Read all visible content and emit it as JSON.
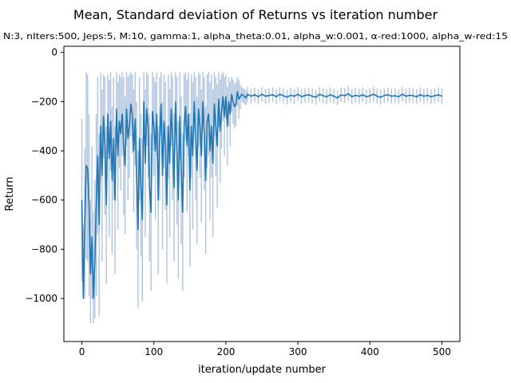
{
  "chart_data": {
    "type": "line",
    "title": "Mean, Standard deviation of Returns vs iteration number",
    "subtitle": "N:3, nIters:500, Jeps:5, M:10, gamma:1, alpha_theta:0.01, alpha_w:0.001, α-red:1000, alpha_w-red:15",
    "xlabel": "iteration/update number",
    "ylabel": "Return",
    "xlim": [
      -25,
      525
    ],
    "ylim": [
      -1175,
      25
    ],
    "xticks": [
      0,
      100,
      200,
      300,
      400,
      500
    ],
    "yticks": [
      0,
      -200,
      -400,
      -600,
      -800,
      -1000
    ],
    "grid": false,
    "legend": "none",
    "colors": {
      "mean": "#1f77b4",
      "std_bars": "#b0c4de"
    },
    "series": [
      {
        "role": "mean",
        "x": [
          0,
          2,
          4,
          6,
          8,
          10,
          12,
          14,
          16,
          18,
          20,
          22,
          24,
          26,
          28,
          30,
          32,
          34,
          36,
          38,
          40,
          42,
          44,
          46,
          48,
          50,
          52,
          54,
          56,
          58,
          60,
          62,
          64,
          66,
          68,
          70,
          72,
          74,
          76,
          78,
          80,
          82,
          84,
          86,
          88,
          90,
          92,
          94,
          96,
          98,
          100,
          102,
          104,
          106,
          108,
          110,
          112,
          114,
          116,
          118,
          120,
          122,
          124,
          126,
          128,
          130,
          132,
          134,
          136,
          138,
          140,
          142,
          144,
          146,
          148,
          150,
          152,
          154,
          156,
          158,
          160,
          162,
          164,
          166,
          168,
          170,
          172,
          174,
          176,
          178,
          180,
          182,
          184,
          186,
          188,
          190,
          192,
          194,
          196,
          198,
          200,
          202,
          204,
          206,
          208,
          210,
          212,
          214,
          216,
          218,
          220,
          222,
          224,
          226,
          228,
          230,
          235,
          240,
          245,
          250,
          255,
          260,
          265,
          270,
          275,
          280,
          285,
          290,
          295,
          300,
          305,
          310,
          315,
          320,
          325,
          330,
          335,
          340,
          345,
          350,
          355,
          360,
          365,
          370,
          375,
          380,
          385,
          390,
          395,
          400,
          405,
          410,
          415,
          420,
          425,
          430,
          435,
          440,
          445,
          450,
          455,
          460,
          465,
          470,
          475,
          480,
          485,
          490,
          495,
          500
        ],
        "y": [
          -600,
          -1000,
          -700,
          -460,
          -470,
          -620,
          -900,
          -750,
          -1000,
          -850,
          -620,
          -420,
          -700,
          -300,
          -500,
          -260,
          -380,
          -620,
          -250,
          -430,
          -280,
          -520,
          -350,
          -600,
          -230,
          -420,
          -280,
          -330,
          -250,
          -380,
          -460,
          -230,
          -350,
          -300,
          -210,
          -250,
          -400,
          -270,
          -500,
          -720,
          -350,
          -540,
          -680,
          -200,
          -450,
          -230,
          -300,
          -550,
          -650,
          -240,
          -300,
          -400,
          -250,
          -600,
          -350,
          -210,
          -500,
          -280,
          -380,
          -620,
          -300,
          -450,
          -230,
          -350,
          -550,
          -200,
          -400,
          -600,
          -260,
          -480,
          -650,
          -300,
          -220,
          -380,
          -250,
          -560,
          -300,
          -420,
          -200,
          -350,
          -480,
          -230,
          -300,
          -420,
          -200,
          -330,
          -520,
          -280,
          -250,
          -400,
          -300,
          -450,
          -210,
          -300,
          -380,
          -190,
          -320,
          -240,
          -180,
          -260,
          -180,
          -300,
          -200,
          -250,
          -170,
          -200,
          -220,
          -210,
          -160,
          -190,
          -180,
          -170,
          -175,
          -180,
          -185,
          -170,
          -178,
          -172,
          -180,
          -170,
          -178,
          -175,
          -172,
          -180,
          -170,
          -176,
          -182,
          -174,
          -178,
          -170,
          -180,
          -175,
          -172,
          -178,
          -182,
          -170,
          -176,
          -180,
          -172,
          -178,
          -185,
          -172,
          -176,
          -168,
          -180,
          -174,
          -178,
          -172,
          -180,
          -176,
          -170,
          -178,
          -182,
          -175,
          -172,
          -178,
          -176,
          -180,
          -170,
          -178,
          -174,
          -176,
          -180,
          -172,
          -178,
          -174,
          -180,
          -176,
          -172,
          -178
        ]
      },
      {
        "role": "std_band",
        "x": [
          0,
          2,
          4,
          6,
          8,
          10,
          12,
          14,
          16,
          18,
          20,
          22,
          24,
          26,
          28,
          30,
          32,
          34,
          36,
          38,
          40,
          42,
          44,
          46,
          48,
          50,
          52,
          54,
          56,
          58,
          60,
          62,
          64,
          66,
          68,
          70,
          72,
          74,
          76,
          78,
          80,
          82,
          84,
          86,
          88,
          90,
          92,
          94,
          96,
          98,
          100,
          102,
          104,
          106,
          108,
          110,
          112,
          114,
          116,
          118,
          120,
          122,
          124,
          126,
          128,
          130,
          132,
          134,
          136,
          138,
          140,
          142,
          144,
          146,
          148,
          150,
          152,
          154,
          156,
          158,
          160,
          162,
          164,
          166,
          168,
          170,
          172,
          174,
          176,
          178,
          180,
          182,
          184,
          186,
          188,
          190,
          192,
          194,
          196,
          198,
          200,
          202,
          204,
          206,
          208,
          210,
          212,
          214,
          216,
          218,
          220,
          222,
          224,
          226,
          228,
          230,
          235,
          240,
          245,
          250,
          255,
          260,
          265,
          270,
          275,
          280,
          285,
          290,
          295,
          300,
          305,
          310,
          315,
          320,
          325,
          330,
          335,
          340,
          345,
          350,
          355,
          360,
          365,
          370,
          375,
          380,
          385,
          390,
          395,
          400,
          405,
          410,
          415,
          420,
          425,
          430,
          435,
          440,
          445,
          450,
          455,
          460,
          465,
          470,
          475,
          480,
          485,
          490,
          495,
          500
        ],
        "upper": [
          -270,
          -700,
          -390,
          -80,
          -90,
          -250,
          -600,
          -380,
          -650,
          -520,
          -250,
          -100,
          -330,
          -80,
          -150,
          -90,
          -100,
          -300,
          -90,
          -110,
          -80,
          -220,
          -100,
          -300,
          -80,
          -120,
          -90,
          -100,
          -80,
          -100,
          -180,
          -80,
          -100,
          -90,
          -80,
          -90,
          -150,
          -80,
          -200,
          -400,
          -100,
          -250,
          -350,
          -80,
          -150,
          -80,
          -90,
          -250,
          -330,
          -80,
          -100,
          -120,
          -80,
          -300,
          -100,
          -80,
          -200,
          -90,
          -120,
          -300,
          -90,
          -150,
          -80,
          -100,
          -250,
          -80,
          -100,
          -280,
          -80,
          -180,
          -330,
          -90,
          -80,
          -110,
          -80,
          -250,
          -90,
          -120,
          -80,
          -100,
          -180,
          -80,
          -90,
          -150,
          -80,
          -100,
          -220,
          -90,
          -80,
          -120,
          -90,
          -150,
          -80,
          -100,
          -130,
          -80,
          -110,
          -90,
          -80,
          -100,
          -90,
          -140,
          -100,
          -120,
          -100,
          -110,
          -130,
          -120,
          -100,
          -110,
          -130,
          -140,
          -145,
          -150,
          -155,
          -140,
          -148,
          -142,
          -150,
          -140,
          -148,
          -145,
          -142,
          -150,
          -140,
          -146,
          -152,
          -144,
          -148,
          -140,
          -150,
          -145,
          -142,
          -148,
          -152,
          -140,
          -146,
          -150,
          -142,
          -148,
          -155,
          -142,
          -146,
          -138,
          -150,
          -144,
          -148,
          -142,
          -150,
          -146,
          -140,
          -148,
          -152,
          -145,
          -142,
          -148,
          -146,
          -150,
          -140,
          -148,
          -144,
          -146,
          -150,
          -142,
          -148,
          -144,
          -150,
          -146,
          -142,
          -148
        ],
        "lower": [
          -930,
          -1000,
          -1000,
          -840,
          -850,
          -990,
          -1100,
          -1000,
          -1100,
          -1080,
          -990,
          -740,
          -1070,
          -520,
          -850,
          -430,
          -660,
          -940,
          -410,
          -750,
          -480,
          -820,
          -600,
          -900,
          -380,
          -720,
          -470,
          -560,
          -420,
          -660,
          -740,
          -380,
          -600,
          -510,
          -340,
          -410,
          -650,
          -460,
          -800,
          -1040,
          -600,
          -830,
          -1010,
          -320,
          -750,
          -380,
          -510,
          -850,
          -970,
          -400,
          -500,
          -680,
          -420,
          -900,
          -600,
          -340,
          -800,
          -470,
          -640,
          -940,
          -510,
          -750,
          -380,
          -600,
          -850,
          -320,
          -700,
          -920,
          -440,
          -780,
          -970,
          -510,
          -360,
          -650,
          -420,
          -870,
          -510,
          -720,
          -320,
          -600,
          -780,
          -380,
          -510,
          -690,
          -320,
          -560,
          -820,
          -470,
          -420,
          -680,
          -510,
          -750,
          -340,
          -500,
          -630,
          -300,
          -530,
          -390,
          -280,
          -420,
          -270,
          -460,
          -300,
          -380,
          -240,
          -290,
          -310,
          -300,
          -220,
          -270,
          -230,
          -200,
          -205,
          -210,
          -215,
          -200,
          -208,
          -202,
          -210,
          -200,
          -208,
          -205,
          -202,
          -210,
          -200,
          -206,
          -212,
          -204,
          -208,
          -200,
          -210,
          -205,
          -202,
          -208,
          -212,
          -200,
          -206,
          -210,
          -202,
          -208,
          -215,
          -202,
          -206,
          -198,
          -210,
          -204,
          -208,
          -202,
          -210,
          -206,
          -200,
          -208,
          -212,
          -205,
          -202,
          -208,
          -206,
          -210,
          -200,
          -208,
          -204,
          -206,
          -210,
          -202,
          -208,
          -204,
          -210,
          -206,
          -202,
          -208
        ]
      }
    ]
  }
}
